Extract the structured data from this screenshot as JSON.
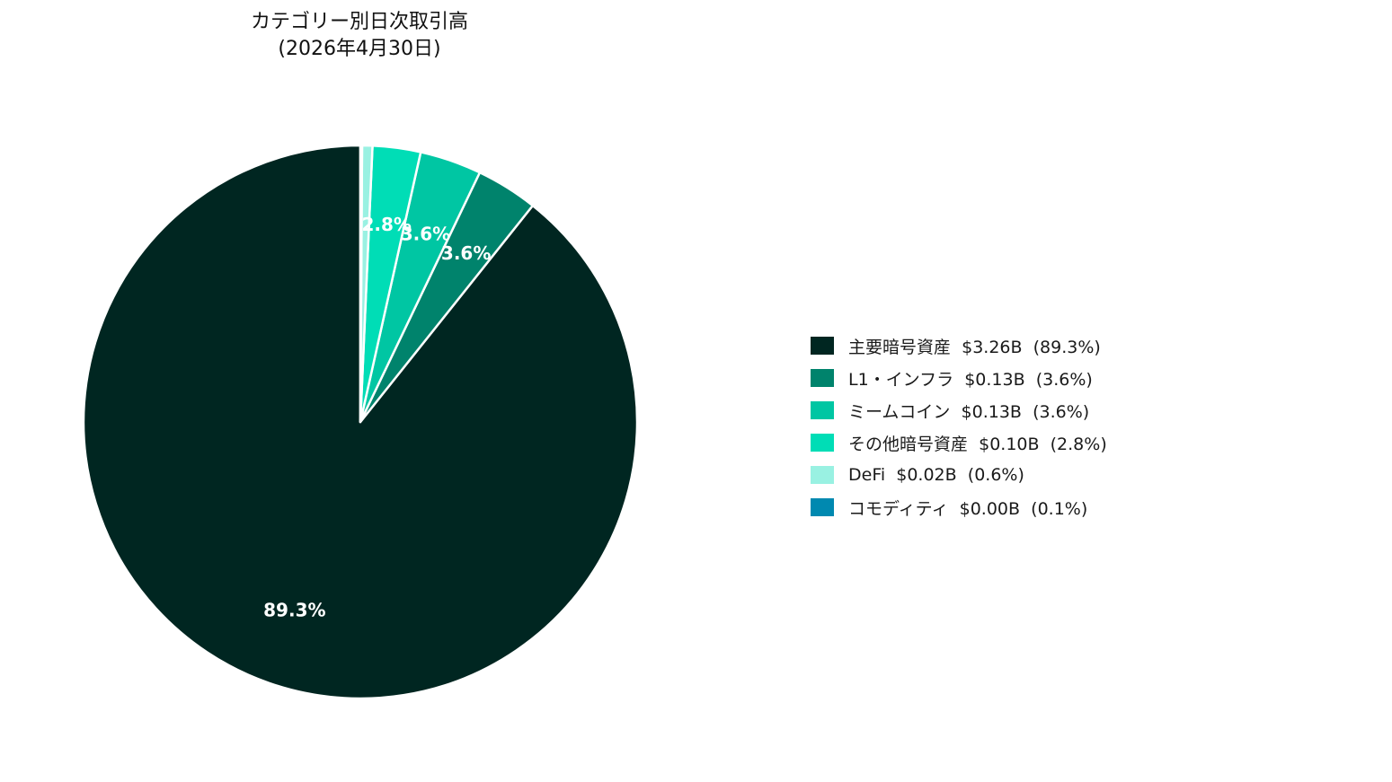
{
  "chart_data": {
    "type": "pie",
    "title": [
      "カテゴリー別日次取引高",
      "(2026年4月30日)"
    ],
    "legend_position": "right",
    "slices": [
      {
        "name": "主要暗号資産",
        "value_label": "$3.26B",
        "percent": 89.3,
        "percent_label": "(89.3%)",
        "slice_label": "89.3%",
        "color": "#002621"
      },
      {
        "name": "L1・インフラ",
        "value_label": "$0.13B",
        "percent": 3.6,
        "percent_label": "(3.6%)",
        "slice_label": "3.6%",
        "color": "#00836C"
      },
      {
        "name": "ミームコイン",
        "value_label": "$0.13B",
        "percent": 3.6,
        "percent_label": "(3.6%)",
        "slice_label": "3.6%",
        "color": "#00C6A3"
      },
      {
        "name": "その他暗号資産",
        "value_label": "$0.10B",
        "percent": 2.8,
        "percent_label": "(2.8%)",
        "slice_label": "2.8%",
        "color": "#00DDB6"
      },
      {
        "name": "DeFi",
        "value_label": "$0.02B",
        "percent": 0.6,
        "percent_label": "(0.6%)",
        "slice_label": "",
        "color": "#99F1E2"
      },
      {
        "name": "コモディティ",
        "value_label": "$0.00B",
        "percent": 0.1,
        "percent_label": "(0.1%)",
        "slice_label": "",
        "color": "#0089B0"
      }
    ]
  }
}
